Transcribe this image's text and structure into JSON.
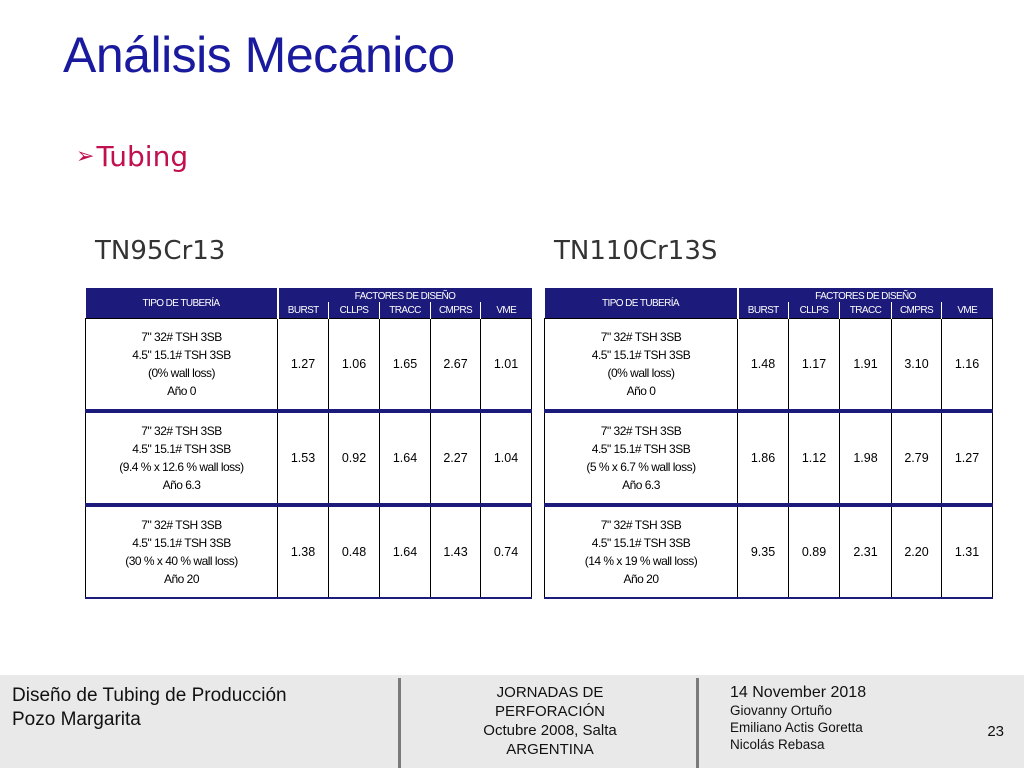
{
  "slide": {
    "title": "Análisis Mecánico",
    "bullet": "Tubing",
    "bullet_icon": "arrow-bullet-icon"
  },
  "tables": [
    {
      "grade": "TN95Cr13",
      "header": {
        "tipo": "TIPO DE TUBERÍA",
        "group": "FACTORES DE DISEÑO",
        "factors": [
          "BURST",
          "CLLPS",
          "TRACC",
          "CMPRS",
          "VME"
        ]
      },
      "rows": [
        {
          "desc": [
            "7\" 32# TSH 3SB",
            "4.5\" 15.1# TSH 3SB",
            "(0% wall loss)",
            "Año 0"
          ],
          "values": [
            "1.27",
            "1.06",
            "1.65",
            "2.67",
            "1.01"
          ],
          "red": [
            false,
            false,
            false,
            false,
            false
          ]
        },
        {
          "desc": [
            "7\" 32# TSH 3SB",
            "4.5\" 15.1# TSH 3SB",
            "(9.4 % x 12.6 % wall loss)",
            "Año 6.3"
          ],
          "values": [
            "1.53",
            "0.92",
            "1.64",
            "2.27",
            "1.04"
          ],
          "red": [
            false,
            true,
            false,
            false,
            false
          ]
        },
        {
          "desc": [
            "7\" 32# TSH 3SB",
            "4.5\" 15.1# TSH 3SB",
            "(30 % x 40 % wall loss)",
            "Año 20"
          ],
          "values": [
            "1.38",
            "0.48",
            "1.64",
            "1.43",
            "0.74"
          ],
          "red": [
            false,
            true,
            false,
            false,
            true
          ]
        }
      ]
    },
    {
      "grade": "TN110Cr13S",
      "header": {
        "tipo": "TIPO DE TUBERÍA",
        "group": "FACTORES DE DISEÑO",
        "factors": [
          "BURST",
          "CLLPS",
          "TRACC",
          "CMPRS",
          "VME"
        ]
      },
      "rows": [
        {
          "desc": [
            "7\" 32# TSH 3SB",
            "4.5\" 15.1# TSH 3SB",
            "(0% wall loss)",
            "Año 0"
          ],
          "values": [
            "1.48",
            "1.17",
            "1.91",
            "3.10",
            "1.16"
          ],
          "red": [
            false,
            false,
            false,
            false,
            false
          ]
        },
        {
          "desc": [
            "7\" 32# TSH 3SB",
            "4.5\" 15.1# TSH 3SB",
            "(5 % x 6.7 % wall loss)",
            "Año 6.3"
          ],
          "values": [
            "1.86",
            "1.12",
            "1.98",
            "2.79",
            "1.27"
          ],
          "red": [
            false,
            false,
            false,
            false,
            false
          ]
        },
        {
          "desc": [
            "7\" 32# TSH 3SB",
            "4.5\" 15.1# TSH 3SB",
            "(14 % x 19 % wall loss)",
            "Año 20"
          ],
          "values": [
            "9.35",
            "0.89",
            "2.31",
            "2.20",
            "1.31"
          ],
          "red": [
            false,
            true,
            false,
            false,
            false
          ]
        }
      ]
    }
  ],
  "footer": {
    "left": [
      "Diseño de Tubing de Producción",
      "Pozo Margarita"
    ],
    "center": [
      "JORNADAS DE",
      "PERFORACIÓN",
      "Octubre 2008, Salta",
      "ARGENTINA"
    ],
    "date": "14 November 2018",
    "authors": [
      "Giovanny Ortuño",
      "Emiliano Actis Goretta",
      "Nicolás Rebasa"
    ],
    "page": "23"
  },
  "colors": {
    "title": "#1a1a9e",
    "bullet": "#c0104e",
    "header_bg": "#1c1a7a",
    "warning_value": "#e0201a",
    "footer_bg": "#e9e9e9"
  }
}
